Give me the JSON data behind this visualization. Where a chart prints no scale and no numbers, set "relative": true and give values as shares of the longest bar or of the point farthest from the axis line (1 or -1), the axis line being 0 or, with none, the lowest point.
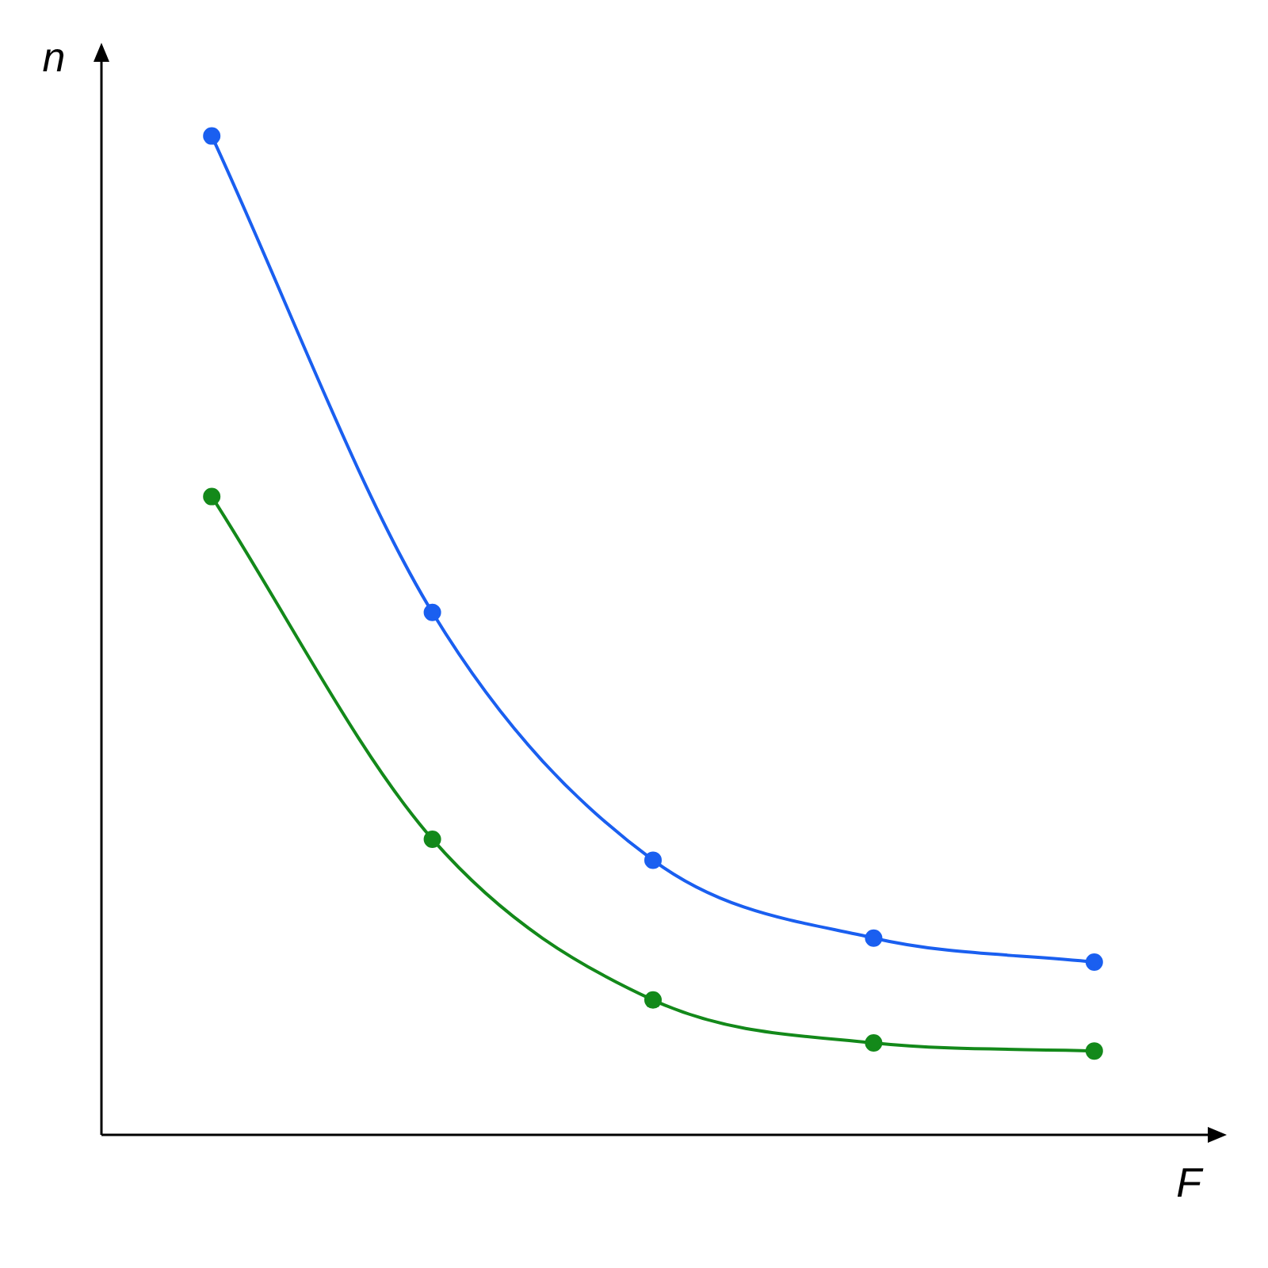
{
  "chart_data": {
    "type": "line",
    "relative": true,
    "xlabel": "F",
    "ylabel": "n",
    "categories": [
      null,
      null,
      null,
      null,
      null
    ],
    "series": [
      {
        "color": "#1a5ff0",
        "values": [
          1,
          0.523,
          0.275,
          0.197,
          0.173
        ]
      },
      {
        "color": "#13891a",
        "values": [
          0.639,
          0.296,
          0.135,
          0.092,
          0.084
        ]
      }
    ],
    "legend": false,
    "marker": "circle",
    "line_style": "solid"
  }
}
